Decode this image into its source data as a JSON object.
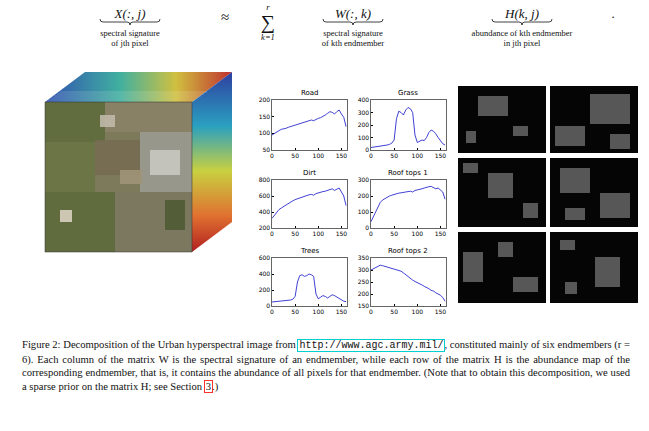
{
  "equation": {
    "lhs": "X(:, j)",
    "lhs_label": [
      "spectral signature",
      "of jth pixel"
    ],
    "approx": "≈",
    "sum": "∑",
    "sum_lower": "k=1",
    "sum_upper": "r",
    "factor1": "W(:, k)",
    "factor1_label": [
      "spectral signature",
      "of kth endmember"
    ],
    "factor2": "H(k, j)",
    "factor2_label": [
      "abundance of kth endmember",
      "in jth pixel"
    ],
    "end": "."
  },
  "chart_data": [
    {
      "type": "line",
      "title": "Road",
      "color": "#2b2bd0",
      "grid": false,
      "x": [
        0,
        5,
        10,
        15,
        20,
        25,
        30,
        35,
        40,
        45,
        50,
        55,
        60,
        65,
        70,
        75,
        80,
        85,
        90,
        95,
        100,
        105,
        110,
        115,
        120,
        125,
        130,
        135,
        140,
        145,
        150,
        155,
        160
      ],
      "values": [
        95,
        100,
        103,
        108,
        112,
        113,
        115,
        118,
        120,
        124,
        126,
        128,
        130,
        131,
        133,
        135,
        138,
        140,
        138,
        142,
        145,
        147,
        150,
        155,
        160,
        165,
        163,
        158,
        165,
        170,
        158,
        148,
        120
      ],
      "xlim": [
        0,
        162
      ],
      "xticks": [
        0,
        50,
        100,
        150
      ],
      "ylim": [
        50,
        200
      ],
      "yticks": [
        50,
        100,
        150,
        200
      ]
    },
    {
      "type": "line",
      "title": "Grass",
      "color": "#2b2bd0",
      "grid": false,
      "x": [
        0,
        5,
        10,
        15,
        20,
        25,
        30,
        35,
        40,
        45,
        50,
        55,
        60,
        65,
        70,
        75,
        80,
        85,
        90,
        95,
        100,
        105,
        110,
        115,
        120,
        125,
        130,
        135,
        140,
        145,
        150,
        155,
        160
      ],
      "values": [
        20,
        22,
        25,
        28,
        30,
        33,
        36,
        40,
        45,
        55,
        80,
        250,
        310,
        300,
        280,
        320,
        340,
        330,
        300,
        120,
        60,
        70,
        80,
        75,
        100,
        140,
        160,
        150,
        130,
        100,
        70,
        50,
        40
      ],
      "xlim": [
        0,
        162
      ],
      "xticks": [
        0,
        50,
        100,
        150
      ],
      "ylim": [
        0,
        400
      ],
      "yticks": [
        0,
        100,
        200,
        300,
        400
      ]
    },
    {
      "type": "line",
      "title": "Dirt",
      "color": "#2b2bd0",
      "grid": false,
      "x": [
        0,
        5,
        10,
        15,
        20,
        25,
        30,
        35,
        40,
        45,
        50,
        55,
        60,
        65,
        70,
        75,
        80,
        85,
        90,
        95,
        100,
        105,
        110,
        115,
        120,
        125,
        130,
        135,
        140,
        145,
        150,
        155,
        160
      ],
      "values": [
        320,
        360,
        400,
        430,
        450,
        470,
        490,
        500,
        520,
        540,
        555,
        565,
        580,
        590,
        600,
        610,
        615,
        620,
        610,
        630,
        640,
        650,
        655,
        660,
        670,
        680,
        690,
        670,
        690,
        700,
        650,
        600,
        480
      ],
      "xlim": [
        0,
        162
      ],
      "xticks": [
        0,
        50,
        100,
        150
      ],
      "ylim": [
        200,
        800
      ],
      "yticks": [
        200,
        400,
        600,
        800
      ]
    },
    {
      "type": "line",
      "title": "Roof tops 1",
      "color": "#2b2bd0",
      "grid": false,
      "x": [
        0,
        5,
        10,
        15,
        20,
        25,
        30,
        35,
        40,
        45,
        50,
        55,
        60,
        65,
        70,
        75,
        80,
        85,
        90,
        95,
        100,
        105,
        110,
        115,
        120,
        125,
        130,
        135,
        140,
        145,
        150,
        155,
        160
      ],
      "values": [
        40,
        70,
        110,
        140,
        160,
        175,
        185,
        195,
        200,
        205,
        210,
        215,
        218,
        220,
        222,
        225,
        228,
        230,
        225,
        235,
        238,
        240,
        245,
        250,
        255,
        258,
        260,
        250,
        245,
        250,
        240,
        225,
        180
      ],
      "xlim": [
        0,
        162
      ],
      "xticks": [
        0,
        50,
        100,
        150
      ],
      "ylim": [
        0,
        300
      ],
      "yticks": [
        0,
        100,
        200,
        300
      ]
    },
    {
      "type": "line",
      "title": "Trees",
      "color": "#2b2bd0",
      "grid": false,
      "x": [
        0,
        5,
        10,
        15,
        20,
        25,
        30,
        35,
        40,
        45,
        50,
        55,
        60,
        65,
        70,
        75,
        80,
        85,
        90,
        95,
        100,
        105,
        110,
        115,
        120,
        125,
        130,
        135,
        140,
        145,
        150,
        155,
        160
      ],
      "values": [
        50,
        52,
        55,
        58,
        60,
        62,
        65,
        70,
        75,
        85,
        120,
        300,
        380,
        390,
        370,
        380,
        400,
        390,
        370,
        150,
        90,
        110,
        130,
        120,
        100,
        120,
        140,
        130,
        110,
        90,
        70,
        60,
        55
      ],
      "xlim": [
        0,
        162
      ],
      "xticks": [
        0,
        50,
        100,
        150
      ],
      "ylim": [
        0,
        600
      ],
      "yticks": [
        0,
        200,
        400,
        600
      ]
    },
    {
      "type": "line",
      "title": "Roof tops 2",
      "color": "#2b2bd0",
      "grid": false,
      "x": [
        0,
        5,
        10,
        15,
        20,
        25,
        30,
        35,
        40,
        45,
        50,
        55,
        60,
        65,
        70,
        75,
        80,
        85,
        90,
        95,
        100,
        105,
        110,
        115,
        120,
        125,
        130,
        135,
        140,
        145,
        150,
        155,
        160
      ],
      "values": [
        300,
        305,
        312,
        318,
        320,
        318,
        315,
        312,
        310,
        308,
        305,
        302,
        300,
        295,
        288,
        280,
        272,
        265,
        258,
        252,
        248,
        242,
        238,
        232,
        228,
        222,
        215,
        212,
        205,
        200,
        195,
        185,
        170
      ],
      "xlim": [
        0,
        162
      ],
      "xticks": [
        0,
        50,
        100,
        150
      ],
      "ylim": [
        150,
        350
      ],
      "yticks": [
        150,
        200,
        250,
        300,
        350
      ]
    }
  ],
  "caption": {
    "before_link": "Figure 2: Decomposition of the Urban hyperspectral image from ",
    "link": "http://www.agc.army.mil/",
    "middle": ", constituted mainly of six endmembers (r = 6). Each column of the matrix W is the spectral signature of an endmember, while each row of the matrix H is the abundance map of the corresponding endmember, that is, it contains the abundance of all pixels for that endmember. (Note that to obtain this decomposition, we used a sparse prior on the matrix H; see Section ",
    "section_ref": "3",
    "end": ".)"
  }
}
